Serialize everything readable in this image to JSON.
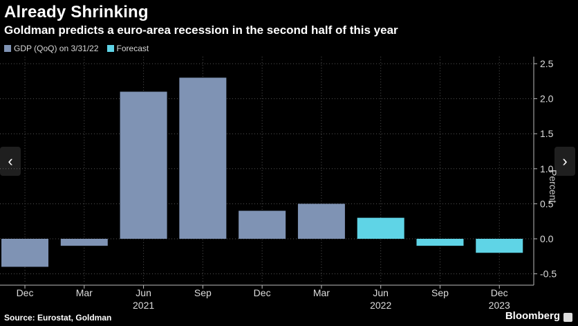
{
  "header": {
    "title": "Already Shrinking",
    "subtitle": "Goldman predicts a euro-area recession in the second half of this year"
  },
  "legend": [
    {
      "label": "GDP (QoQ) on 3/31/22",
      "color": "#7f93b4"
    },
    {
      "label": "Forecast",
      "color": "#5fd4e6"
    }
  ],
  "footer": {
    "source": "Source: Eurostat, Goldman",
    "brand": "Bloomberg"
  },
  "nav": {
    "prev": "‹",
    "next": "›"
  },
  "chart_data": {
    "type": "bar",
    "title": "Already Shrinking",
    "subtitle": "Goldman predicts a euro-area recession in the second half of this year",
    "ylabel": "Percent",
    "ylim": [
      -0.6,
      2.6
    ],
    "yticks": [
      2.5,
      2.0,
      1.5,
      1.0,
      0.5,
      0.0,
      -0.5
    ],
    "ytick_labels": [
      "2.5",
      "2.0",
      "1.5",
      "1.0",
      "0.5",
      "0.0",
      "-0.5"
    ],
    "categories": [
      "Dec",
      "Mar",
      "Jun",
      "Sep",
      "Dec",
      "Mar",
      "Jun",
      "Sep",
      "Dec"
    ],
    "year_labels": [
      {
        "index": 2,
        "label": "2021"
      },
      {
        "index": 6,
        "label": "2022"
      },
      {
        "index": 8,
        "label": "2023"
      }
    ],
    "values": [
      -0.4,
      -0.1,
      2.1,
      2.3,
      0.4,
      0.5,
      0.3,
      -0.1,
      -0.2
    ],
    "series_type": [
      "actual",
      "actual",
      "actual",
      "actual",
      "actual",
      "actual",
      "forecast",
      "forecast",
      "forecast"
    ],
    "colors": {
      "actual": "#7f93b4",
      "forecast": "#5fd4e6",
      "grid": "#555555",
      "axis": "#bbbbbb"
    }
  }
}
